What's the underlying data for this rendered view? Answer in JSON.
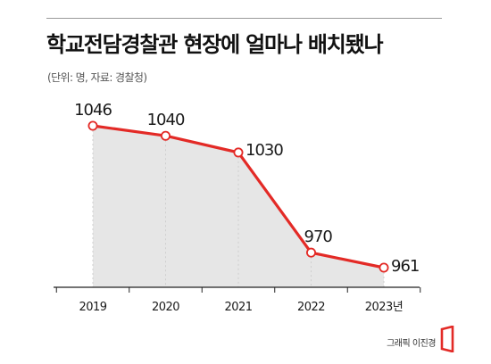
{
  "header": {
    "title": "학교전담경찰관 현장에 얼마나 배치됐나",
    "subtitle": "(단위: 명, 자료: 경찰청)"
  },
  "credit": {
    "text": "그래픽 이진경"
  },
  "colors": {
    "line": "#e32a26",
    "area": "#e6e6e6",
    "marker_fill": "#ffffff",
    "axis": "#222222",
    "logo": "#e32a26"
  },
  "chart_data": {
    "type": "line",
    "x": [
      "2019",
      "2020",
      "2021",
      "2022",
      "2023"
    ],
    "x_tick_labels": [
      "2019",
      "2020",
      "2021",
      "2022",
      "2023년"
    ],
    "series": [
      {
        "values": [
          1046,
          1040,
          1030,
          970,
          961
        ]
      }
    ],
    "data_labels": [
      "1046",
      "1040",
      "1030",
      "970",
      "961"
    ],
    "title": "학교전담경찰관 현장에 얼마나 배치됐나",
    "xlabel": "",
    "ylabel": "",
    "area_fill": true,
    "grid": false,
    "legend": "none"
  }
}
